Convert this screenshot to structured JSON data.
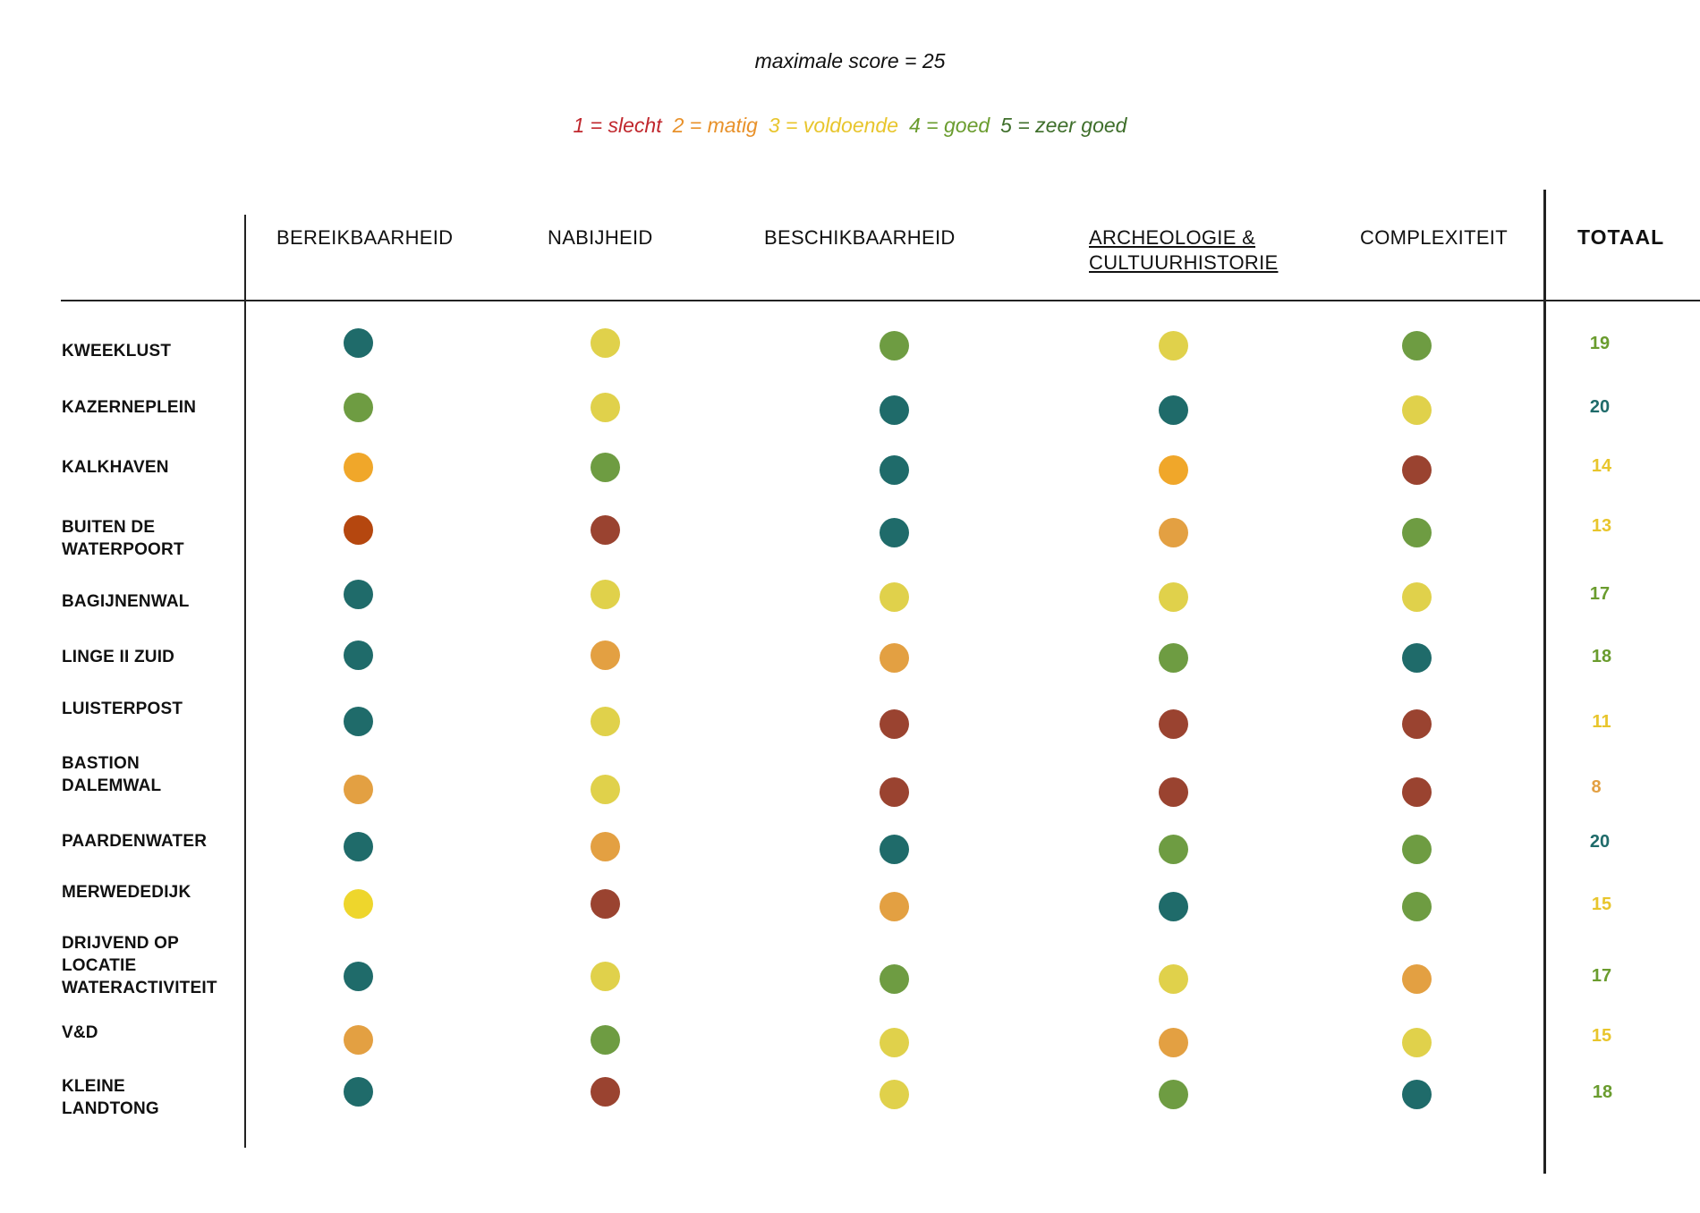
{
  "max_score_text": "maximale score = 25",
  "legend": [
    {
      "text": "1  = slecht",
      "color": "#c0272d"
    },
    {
      "text": "2  = matig",
      "color": "#e8912a"
    },
    {
      "text": "3  = voldoende",
      "color": "#e8c52c"
    },
    {
      "text": "4  = goed",
      "color": "#6a9c2e"
    },
    {
      "text": "5  = zeer goed",
      "color": "#3e6e2a"
    }
  ],
  "headers": {
    "bereikbaarheid": "BEREIKBAARHEID",
    "nabijheid": "NABIJHEID",
    "beschikbaarheid": "BESCHIKBAARHEID",
    "archeologie_line1": "ARCHEOLOGIE &",
    "archeologie_line2": "CULTUURHISTORIE",
    "complexiteit": "COMPLEXITEIT",
    "totaal": "TOTAAL"
  },
  "colors": {
    "teal": "#1f6b6a",
    "green": "#6e9c42",
    "yellow": "#e0d14b",
    "bright_yellow": "#eed62c",
    "orange": "#f0a72a",
    "light_orange": "#e3a042",
    "brown": "#9a4330",
    "dark_orange": "#b5470f"
  },
  "rows": [
    {
      "label": "KWEEKLUST",
      "dots": [
        "teal",
        "yellow",
        "green",
        "yellow",
        "green"
      ],
      "total": "19",
      "total_color": "#6a9c2e"
    },
    {
      "label": "KAZERNEPLEIN",
      "dots": [
        "green",
        "yellow",
        "teal",
        "teal",
        "yellow"
      ],
      "total": "20",
      "total_color": "#1f6b6a"
    },
    {
      "label": "KALKHAVEN",
      "dots": [
        "orange",
        "green",
        "teal",
        "orange",
        "brown"
      ],
      "total": "14",
      "total_color": "#e8c52c"
    },
    {
      "label": "BUITEN DE\nWATERPOORT",
      "dots": [
        "dark_orange",
        "brown",
        "teal",
        "light_orange",
        "green"
      ],
      "total": "13",
      "total_color": "#e8c52c"
    },
    {
      "label": "BAGIJNENWAL",
      "dots": [
        "teal",
        "yellow",
        "yellow",
        "yellow",
        "yellow"
      ],
      "total": "17",
      "total_color": "#6a9c2e"
    },
    {
      "label": "LINGE II ZUID",
      "dots": [
        "teal",
        "light_orange",
        "light_orange",
        "green",
        "teal"
      ],
      "total": "18",
      "total_color": "#6a9c2e"
    },
    {
      "label": "LUISTERPOST",
      "dots": [
        "teal",
        "yellow",
        "brown",
        "brown",
        "brown"
      ],
      "total": "11",
      "total_color": "#e8c52c"
    },
    {
      "label": "BASTION\nDALEMWAL",
      "dots": [
        "light_orange",
        "yellow",
        "brown",
        "brown",
        "brown"
      ],
      "total": "8",
      "total_color": "#e3a042"
    },
    {
      "label": "PAARDENWATER",
      "dots": [
        "teal",
        "light_orange",
        "teal",
        "green",
        "green"
      ],
      "total": "20",
      "total_color": "#1f6b6a"
    },
    {
      "label": "MERWEDEDIJK",
      "dots": [
        "bright_yellow",
        "brown",
        "light_orange",
        "teal",
        "green"
      ],
      "total": "15",
      "total_color": "#e8c52c"
    },
    {
      "label": "DRIJVEND OP\nLOCATIE\nWATERACTIVITEIT",
      "dots": [
        "teal",
        "yellow",
        "green",
        "yellow",
        "light_orange"
      ],
      "total": "17",
      "total_color": "#6a9c2e"
    },
    {
      "label": "V&D",
      "dots": [
        "light_orange",
        "green",
        "yellow",
        "light_orange",
        "yellow"
      ],
      "total": "15",
      "total_color": "#e8c52c"
    },
    {
      "label": "KLEINE\nLANDTONG",
      "dots": [
        "teal",
        "brown",
        "yellow",
        "green",
        "teal"
      ],
      "total": "18",
      "total_color": "#6a9c2e"
    }
  ]
}
